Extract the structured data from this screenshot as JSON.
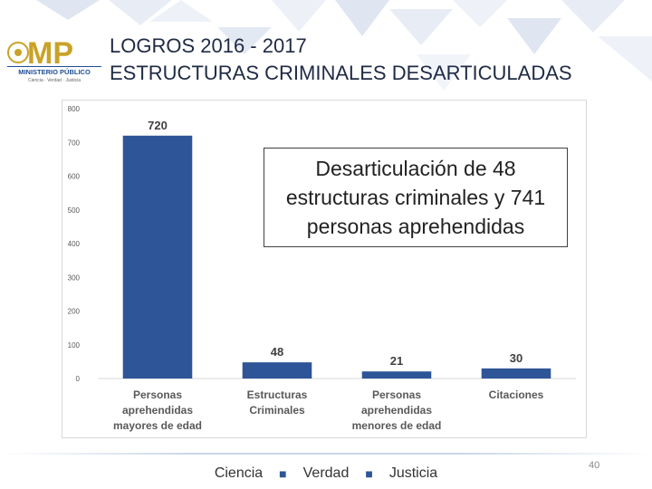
{
  "header": {
    "logo_text": "MP",
    "logo_subtitle": "MINISTERIO PÚBLICO",
    "logo_motto": "Ciencia · Verdad · Justicia",
    "title_line1": "LOGROS 2016 - 2017",
    "title_line2": "ESTRUCTURAS CRIMINALES DESARTICULADAS"
  },
  "chart_data": {
    "type": "bar",
    "categories": [
      [
        "Personas",
        "aprehendidas",
        "mayores de edad"
      ],
      [
        "Estructuras",
        "Criminales"
      ],
      [
        "Personas",
        "aprehendidas",
        "menores de edad"
      ],
      [
        "Citaciones"
      ]
    ],
    "values": [
      720,
      48,
      21,
      30
    ],
    "ylim": [
      0,
      800
    ],
    "yticks": [
      0,
      100,
      200,
      300,
      400,
      500,
      600,
      700,
      800
    ],
    "bar_color": "#2e5597",
    "title": "",
    "xlabel": "",
    "ylabel": ""
  },
  "annotation": {
    "text": "Desarticulación de 48 estructuras criminales y 741 personas aprehendidas"
  },
  "footer": {
    "words": [
      "Ciencia",
      "Verdad",
      "Justicia"
    ],
    "separator": "■",
    "page_number": "40"
  },
  "colors": {
    "accent": "#2e5597",
    "logo_gold": "#c9a227",
    "logo_blue": "#1f4e96"
  }
}
